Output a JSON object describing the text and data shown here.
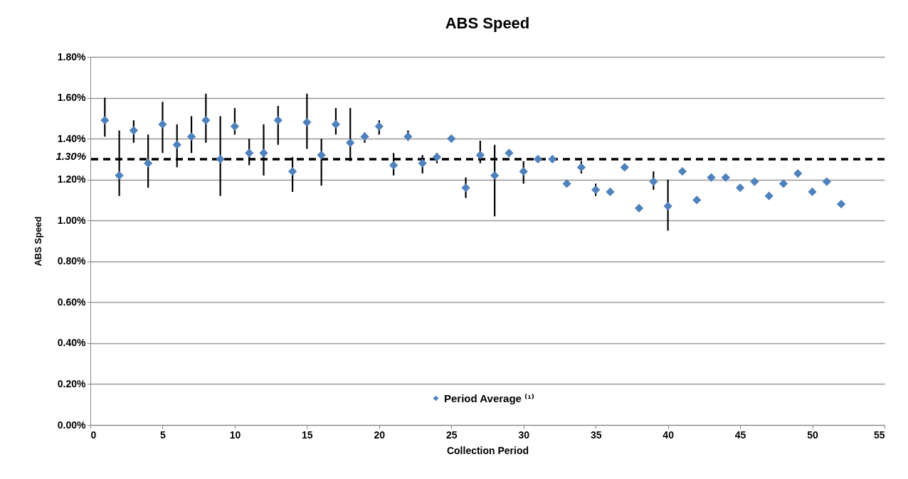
{
  "chart_data": {
    "type": "scatter",
    "title": "ABS Speed",
    "xlabel": "Collection Period",
    "ylabel": "ABS Speed",
    "x": [
      1,
      2,
      3,
      4,
      5,
      6,
      7,
      8,
      9,
      10,
      11,
      12,
      13,
      14,
      15,
      16,
      17,
      18,
      19,
      20,
      21,
      22,
      23,
      24,
      25,
      26,
      27,
      28,
      29,
      30,
      31,
      32,
      33,
      34,
      35,
      36,
      37,
      38,
      39,
      40,
      41,
      42,
      43,
      44,
      45,
      46,
      47,
      48,
      49,
      50,
      51,
      52
    ],
    "series": [
      {
        "name": "Period Average ⁽¹⁾",
        "color": "#4f81bd",
        "values": [
          1.49,
          1.22,
          1.44,
          1.28,
          1.47,
          1.37,
          1.41,
          1.49,
          1.3,
          1.46,
          1.33,
          1.33,
          1.49,
          1.24,
          1.48,
          1.32,
          1.47,
          1.38,
          1.41,
          1.46,
          1.27,
          1.41,
          1.28,
          1.31,
          1.4,
          1.16,
          1.32,
          1.22,
          1.33,
          1.24,
          1.3,
          1.3,
          1.18,
          1.26,
          1.15,
          1.14,
          1.26,
          1.06,
          1.19,
          1.07,
          1.24,
          1.1,
          1.21,
          1.21,
          1.16,
          1.19,
          1.12,
          1.18,
          1.23,
          1.14,
          1.19,
          1.08
        ],
        "errors": [
          [
            1.41,
            1.6
          ],
          [
            1.12,
            1.44
          ],
          [
            1.38,
            1.49
          ],
          [
            1.16,
            1.42
          ],
          [
            1.33,
            1.58
          ],
          [
            1.26,
            1.47
          ],
          [
            1.33,
            1.51
          ],
          [
            1.38,
            1.62
          ],
          [
            1.12,
            1.51
          ],
          [
            1.42,
            1.55
          ],
          [
            1.27,
            1.4
          ],
          [
            1.22,
            1.47
          ],
          [
            1.37,
            1.56
          ],
          [
            1.14,
            1.31
          ],
          [
            1.35,
            1.62
          ],
          [
            1.17,
            1.4
          ],
          [
            1.42,
            1.55
          ],
          [
            1.29,
            1.55
          ],
          [
            1.38,
            1.43
          ],
          [
            1.42,
            1.49
          ],
          [
            1.22,
            1.33
          ],
          [
            1.39,
            1.44
          ],
          [
            1.23,
            1.32
          ],
          [
            1.28,
            1.33
          ],
          null,
          [
            1.11,
            1.21
          ],
          [
            1.28,
            1.39
          ],
          [
            1.02,
            1.37
          ],
          null,
          [
            1.18,
            1.29
          ],
          null,
          null,
          null,
          [
            1.23,
            1.29
          ],
          [
            1.12,
            1.18
          ],
          null,
          null,
          null,
          [
            1.15,
            1.24
          ],
          [
            0.95,
            1.2
          ],
          null,
          null,
          null,
          null,
          null,
          null,
          null,
          null,
          null,
          null,
          null,
          null
        ]
      }
    ],
    "xlim": [
      0,
      55
    ],
    "xticks": [
      0,
      5,
      10,
      15,
      20,
      25,
      30,
      35,
      40,
      45,
      50,
      55
    ],
    "ylim": [
      0,
      1.8
    ],
    "yticks": [
      {
        "value": 0,
        "label": "0.00%"
      },
      {
        "value": 0.2,
        "label": "0.20%"
      },
      {
        "value": 0.4,
        "label": "0.40%"
      },
      {
        "value": 0.6,
        "label": "0.60%"
      },
      {
        "value": 0.8,
        "label": "0.80%"
      },
      {
        "value": 1.0,
        "label": "1.00%"
      },
      {
        "value": 1.2,
        "label": "1.20%"
      },
      {
        "value": 1.4,
        "label": "1.40%"
      },
      {
        "value": 1.6,
        "label": "1.60%"
      },
      {
        "value": 1.8,
        "label": "1.80%"
      }
    ],
    "ref_lines": [
      {
        "axis": "y",
        "value": 1.3,
        "label": "1.30%",
        "color": "#000000",
        "line_style": "dashed"
      }
    ],
    "grid": "y",
    "legend": "bottom",
    "marker": "diamond"
  }
}
